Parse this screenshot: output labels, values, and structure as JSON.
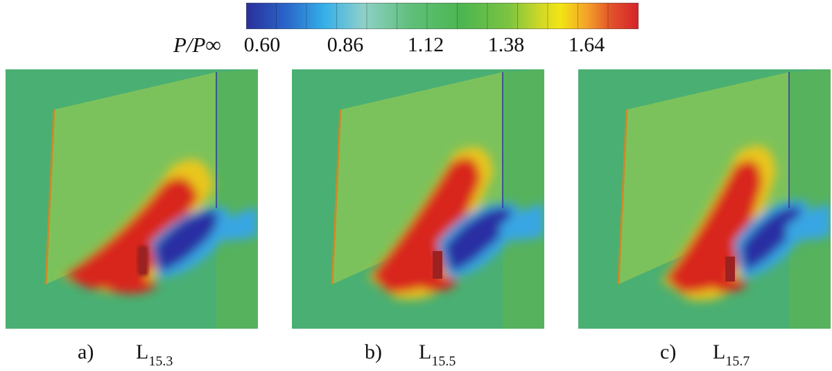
{
  "colorbar": {
    "variable_label": "P/P∞",
    "tick_labels": [
      "0.60",
      "0.86",
      "1.12",
      "1.38",
      "1.64"
    ],
    "colors": [
      "#2b2f9a",
      "#2a64c8",
      "#35b0e8",
      "#8fd0c8",
      "#5fbf7a",
      "#4cb650",
      "#7cc441",
      "#cfd827",
      "#f3e514",
      "#f3a12a",
      "#e2522a",
      "#d4232a"
    ]
  },
  "panels": [
    {
      "label": "a)",
      "case_main": "L",
      "case_sub": "15.3"
    },
    {
      "label": "b)",
      "case_main": "L",
      "case_sub": "15.5"
    },
    {
      "label": "c)",
      "case_main": "L",
      "case_sub": "15.7"
    }
  ],
  "field_colors": {
    "background": "#4aaf72",
    "plate": "#7cc25c",
    "high": "#d8271f",
    "mid_high": "#e9c61f",
    "low": "#2a2ea3",
    "low_mid": "#37a6e3",
    "fin": "#8f1d1c"
  }
}
